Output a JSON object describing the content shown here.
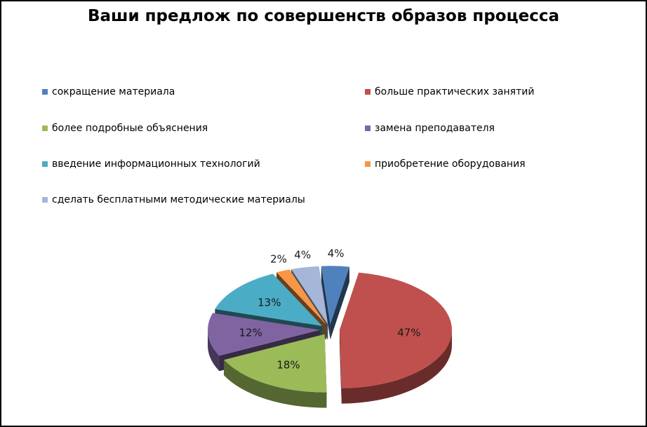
{
  "chart_data": {
    "type": "pie",
    "title": "Ваши предлож по совершенств образов процесса",
    "legend_placement": "top",
    "slices": [
      {
        "name": "сокращение материала",
        "value": 4,
        "label": "4%",
        "color": "#4F81BD"
      },
      {
        "name": "больше практических занятий",
        "value": 47,
        "label": "47%",
        "color": "#C0504D"
      },
      {
        "name": "более подробные объяснения",
        "value": 18,
        "label": "18%",
        "color": "#9BBB59"
      },
      {
        "name": "замена преподавателя",
        "value": 12,
        "label": "12%",
        "color": "#8064A2"
      },
      {
        "name": "введение информационных технологий",
        "value": 13,
        "label": "13%",
        "color": "#4BACC6"
      },
      {
        "name": "приобретение оборудования",
        "value": 2,
        "label": "2%",
        "color": "#F79646"
      },
      {
        "name": "сделать бесплатными методические материалы",
        "value": 4,
        "label": "4%",
        "color": "#A5B6D9"
      }
    ]
  }
}
